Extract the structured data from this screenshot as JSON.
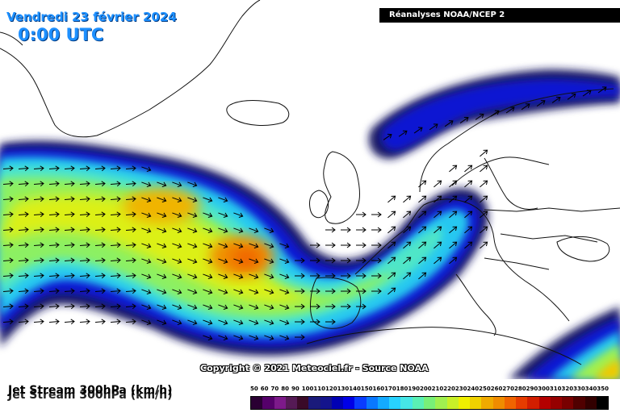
{
  "header": {
    "date": "Vendredi 23 février 2024",
    "time": "0:00 UTC",
    "source": "Réanalyses NOAA/NCEP 2"
  },
  "footer": {
    "copyright": "Copyright © 2021 Meteociel.fr - Source NOAA",
    "map_label": "Jet Stream 300hPa (km/h)"
  },
  "legend": {
    "values": [
      "50",
      "60",
      "70",
      "80",
      "90",
      "100",
      "110",
      "120",
      "130",
      "140",
      "150",
      "160",
      "170",
      "180",
      "190",
      "200",
      "210",
      "220",
      "230",
      "240",
      "250",
      "260",
      "270",
      "280",
      "290",
      "300",
      "310",
      "320",
      "330",
      "340",
      "350"
    ],
    "colors": [
      "#2a0033",
      "#55006a",
      "#7d1a8a",
      "#551a55",
      "#3a0a28",
      "#1a1a7a",
      "#14148c",
      "#0000b4",
      "#0000e6",
      "#0a3cff",
      "#0a78ff",
      "#14aaff",
      "#28d2ff",
      "#46e6e6",
      "#5af0b4",
      "#78f078",
      "#a0f050",
      "#c8f028",
      "#f0f000",
      "#f0d200",
      "#f0aa00",
      "#f08c00",
      "#f06400",
      "#e63c00",
      "#d21e00",
      "#b40000",
      "#960000",
      "#780000",
      "#500000",
      "#320000",
      "#000000"
    ]
  },
  "colors": {
    "land_line": "#111111",
    "arrow": "#000000",
    "title_blue": "#1e90ff"
  }
}
